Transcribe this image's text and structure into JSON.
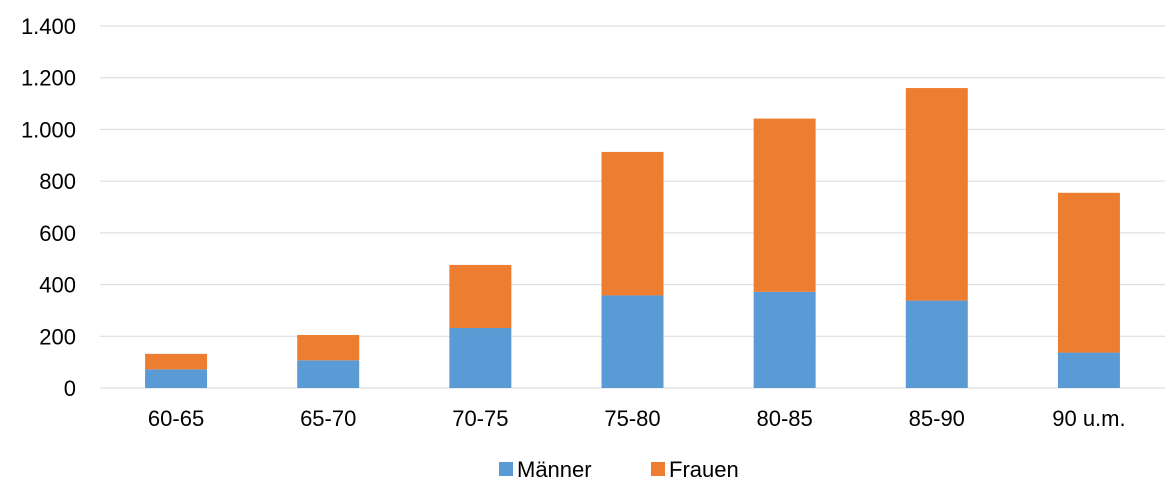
{
  "chart_data": {
    "type": "bar",
    "stacked": true,
    "categories": [
      "60-65",
      "65-70",
      "70-75",
      "75-80",
      "80-85",
      "85-90",
      "90 u.m."
    ],
    "series": [
      {
        "name": "Männer",
        "values": [
          72,
          107,
          232,
          358,
          372,
          338,
          137
        ],
        "color": "#5b9bd5"
      },
      {
        "name": "Frauen",
        "values": [
          60,
          98,
          244,
          555,
          670,
          822,
          618
        ],
        "color": "#ed7d31"
      }
    ],
    "ylim": [
      0,
      1400
    ],
    "yticks": [
      0,
      200,
      400,
      600,
      800,
      1000,
      1200,
      1400
    ],
    "ytick_labels": [
      "0",
      "200",
      "400",
      "600",
      "800",
      "1.000",
      "1.200",
      "1.400"
    ],
    "grid": true,
    "legend_position": "bottom"
  }
}
